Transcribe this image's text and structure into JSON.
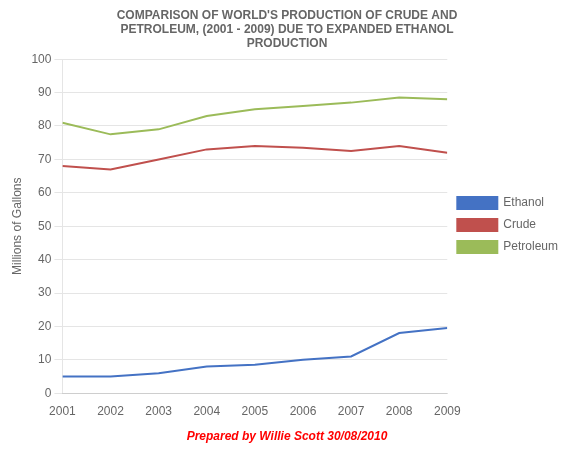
{
  "chart_data": {
    "type": "line",
    "title": "COMPARISON OF WORLD'S PRODUCTION OF CRUDE AND\nPETROLEUM, (2001 - 2009) DUE TO EXPANDED ETHANOL\nPRODUCTION",
    "ylabel": "Millions of Gallons",
    "x": [
      2001,
      2002,
      2003,
      2004,
      2005,
      2006,
      2007,
      2008,
      2009
    ],
    "series": [
      {
        "name": "Ethanol",
        "color": "#4472C4",
        "values": [
          5,
          5,
          6,
          8,
          8.5,
          10,
          11,
          18,
          19.5
        ]
      },
      {
        "name": "Crude",
        "color": "#C0504D",
        "values": [
          68,
          67,
          70,
          73,
          74,
          73.5,
          72.5,
          74,
          72
        ]
      },
      {
        "name": "Petroleum",
        "color": "#9BBB59",
        "values": [
          81,
          77.5,
          79,
          83,
          85,
          86,
          87,
          88.5,
          88
        ]
      }
    ],
    "xlim": [
      2001,
      2009
    ],
    "xticks": [
      2001,
      2002,
      2003,
      2004,
      2005,
      2006,
      2007,
      2008,
      2009
    ],
    "ylim": [
      0,
      100
    ],
    "yticks": [
      0,
      10,
      20,
      30,
      40,
      50,
      60,
      70,
      80,
      90,
      100
    ],
    "grid": "y",
    "legend": "right",
    "annotations": [
      {
        "text": "Prepared by Willie Scott 30/08/2010",
        "color": "red"
      }
    ]
  }
}
